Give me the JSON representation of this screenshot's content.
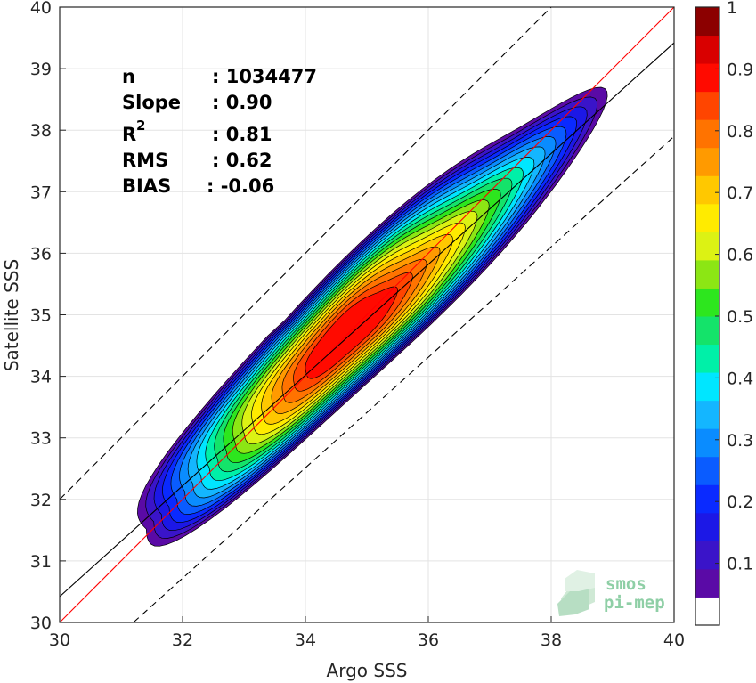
{
  "chart_data": {
    "type": "contour",
    "xlabel": "Argo SSS",
    "ylabel": "Satellite SSS",
    "xlim": [
      30,
      40
    ],
    "ylim": [
      30,
      40
    ],
    "xticks": [
      30,
      32,
      34,
      36,
      38,
      40
    ],
    "yticks": [
      30,
      31,
      32,
      33,
      34,
      35,
      36,
      37,
      38,
      39,
      40
    ],
    "grid": true,
    "stats": [
      {
        "label": "n",
        "value": ": 1034477"
      },
      {
        "label": "Slope",
        "value": ": 0.90"
      },
      {
        "label": "R",
        "superscript": "2",
        "value": ": 0.81"
      },
      {
        "label": "RMS",
        "value": ": 0.62"
      },
      {
        "label": "BIAS",
        "value": ": -0.06"
      }
    ],
    "lines": [
      {
        "name": "1:1 line",
        "color": "#ff0000",
        "style": "solid",
        "slope": 1.0,
        "intercept": 0.0
      },
      {
        "name": "regression fit",
        "color": "#000000",
        "style": "solid",
        "points": [
          [
            30,
            30.42
          ],
          [
            40,
            39.42
          ]
        ]
      },
      {
        "name": "upper bound",
        "color": "#000000",
        "style": "dashed",
        "points": [
          [
            30,
            32.0
          ],
          [
            40,
            42.0
          ]
        ]
      },
      {
        "name": "lower bound",
        "color": "#000000",
        "style": "dashed",
        "points": [
          [
            31.2,
            30.0
          ],
          [
            40,
            37.9
          ]
        ]
      }
    ],
    "density": {
      "center": [
        35.0,
        35.0
      ],
      "axis_direction": [
        1,
        0.97
      ],
      "colormap": "jet",
      "levels": [
        0.05,
        0.1,
        0.15,
        0.2,
        0.25,
        0.3,
        0.35,
        0.4,
        0.45,
        0.5,
        0.55,
        0.6,
        0.65,
        0.7,
        0.75,
        0.8,
        0.85,
        0.9,
        0.95
      ]
    },
    "colorbar": {
      "ticks": [
        0.1,
        0.2,
        0.3,
        0.4,
        0.5,
        0.6,
        0.7,
        0.8,
        0.9,
        1
      ],
      "tick_labels": [
        "0.1",
        "0.2",
        "0.3",
        "0.4",
        "0.5",
        "0.6",
        "0.7",
        "0.8",
        "0.9",
        "1"
      ],
      "range": [
        0,
        1
      ],
      "colors": [
        "#ffffff",
        "#5a0aa6",
        "#3a14c9",
        "#1c18e6",
        "#0a2aff",
        "#0a5cff",
        "#0a8cff",
        "#14b6ff",
        "#00e6ff",
        "#00f0a8",
        "#14e36a",
        "#2de61e",
        "#8ce614",
        "#dcf214",
        "#ffeb00",
        "#ffc800",
        "#ff9a00",
        "#ff7300",
        "#ff4500",
        "#ff0a00",
        "#d90000",
        "#8c0000"
      ]
    }
  },
  "logo": {
    "line1": "smos",
    "line2": "pi-mep"
  }
}
